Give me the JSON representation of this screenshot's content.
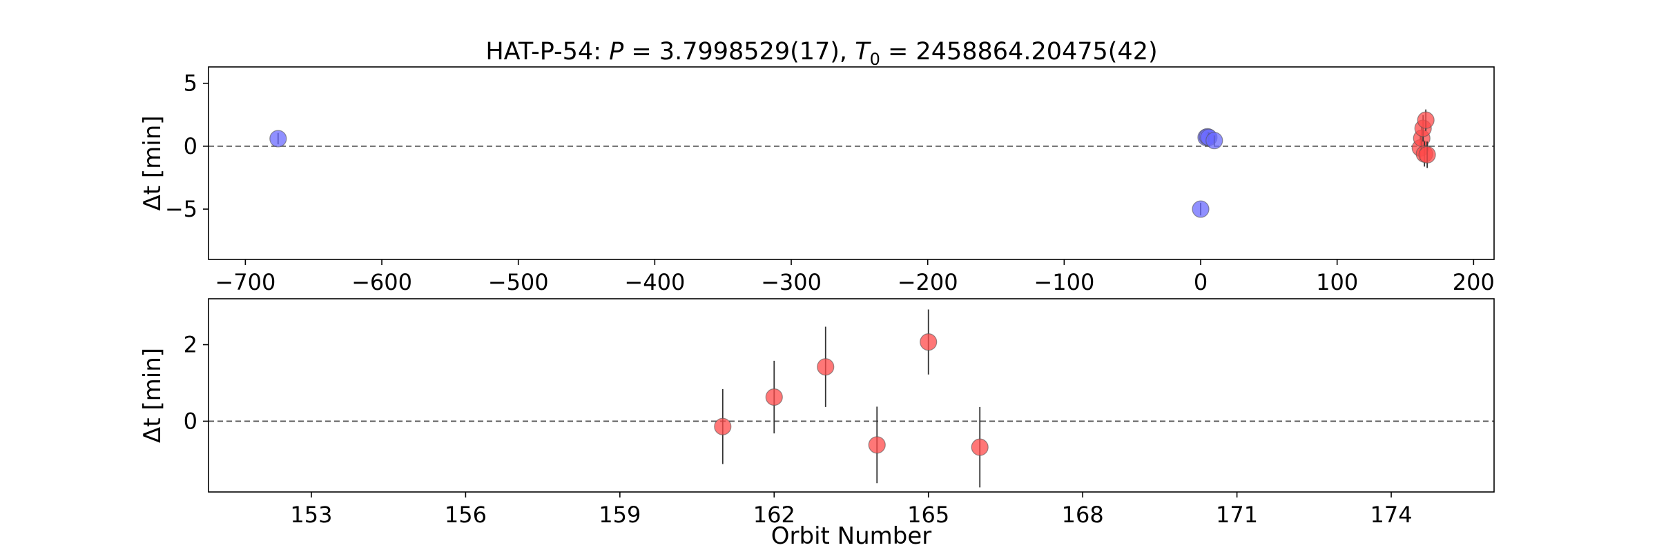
{
  "chart_data": [
    {
      "type": "scatter",
      "title_parts": {
        "name": "HAT-P-54: ",
        "p_sym": "P",
        "p_eq": " = 3.7998529(17), ",
        "t_sym": "T",
        "t_sub": "0",
        "t_eq": " = 2458864.20475(42)"
      },
      "xlabel": "",
      "ylabel": "Δt [min]",
      "xlim": [
        -727,
        215
      ],
      "ylim": [
        -9,
        6.3
      ],
      "xticks": [
        -700,
        -600,
        -500,
        -400,
        -300,
        -200,
        -100,
        0,
        100,
        200
      ],
      "xtick_labels": [
        "−700",
        "−600",
        "−500",
        "−400",
        "−300",
        "−200",
        "−100",
        "0",
        "100",
        "200"
      ],
      "yticks": [
        5,
        0,
        -5
      ],
      "ytick_labels": [
        "5",
        "0",
        "−5"
      ],
      "zero_line": true,
      "series": [
        {
          "color": "#6b6bff",
          "points": [
            {
              "x": -676,
              "y": 0.6,
              "err": 0.45
            },
            {
              "x": 0,
              "y": -5.0,
              "err": 0.5
            },
            {
              "x": 4,
              "y": 0.7,
              "err": 0.4
            },
            {
              "x": 5,
              "y": 0.75,
              "err": 0.4
            },
            {
              "x": 6,
              "y": 0.7,
              "err": 0.4
            },
            {
              "x": 10,
              "y": 0.45,
              "err": 0.4
            }
          ]
        },
        {
          "color": "#ff4a4a",
          "points": [
            {
              "x": 161,
              "y": -0.14,
              "err": 0.98
            },
            {
              "x": 162,
              "y": 0.63,
              "err": 0.95
            },
            {
              "x": 163,
              "y": 1.42,
              "err": 1.05
            },
            {
              "x": 164,
              "y": -0.62,
              "err": 1.0
            },
            {
              "x": 165,
              "y": 2.07,
              "err": 0.85
            },
            {
              "x": 166,
              "y": -0.68,
              "err": 1.05
            }
          ]
        }
      ]
    },
    {
      "type": "scatter",
      "title": "",
      "xlabel": "Orbit Number",
      "ylabel": "Δt [min]",
      "xlim": [
        151,
        176
      ],
      "ylim": [
        -1.85,
        3.2
      ],
      "xticks": [
        153,
        156,
        159,
        162,
        165,
        168,
        171,
        174
      ],
      "xtick_labels": [
        "153",
        "156",
        "159",
        "162",
        "165",
        "168",
        "171",
        "174"
      ],
      "yticks": [
        2,
        0
      ],
      "ytick_labels": [
        "2",
        "0"
      ],
      "zero_line": true,
      "series": [
        {
          "color": "#ff4a4a",
          "points": [
            {
              "x": 161,
              "y": -0.14,
              "err": 0.98
            },
            {
              "x": 162,
              "y": 0.63,
              "err": 0.95
            },
            {
              "x": 163,
              "y": 1.42,
              "err": 1.05
            },
            {
              "x": 164,
              "y": -0.62,
              "err": 1.0
            },
            {
              "x": 165,
              "y": 2.07,
              "err": 0.85
            },
            {
              "x": 166,
              "y": -0.68,
              "err": 1.05
            }
          ]
        }
      ]
    }
  ]
}
